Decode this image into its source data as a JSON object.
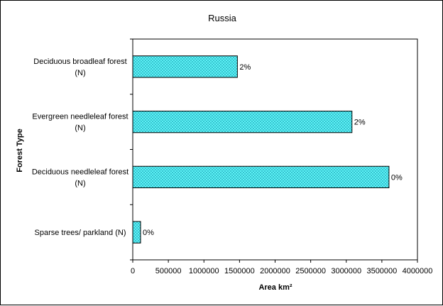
{
  "chart_data": {
    "type": "bar",
    "orientation": "horizontal",
    "title": "Russia",
    "xlabel": "Area km²",
    "ylabel": "Forest Type",
    "xlim": [
      0,
      4000000
    ],
    "xticks": [
      0,
      500000,
      1000000,
      1500000,
      2000000,
      2500000,
      3000000,
      3500000,
      4000000
    ],
    "grid": false,
    "legend": "none",
    "bar_color": "#66ffff",
    "bar_pattern": "crosshatch",
    "categories": [
      [
        "Deciduous broadleaf forest",
        "(N)"
      ],
      [
        "Evergreen needleleaf forest",
        "(N)"
      ],
      [
        "Deciduous needleleaf forest",
        "(N)"
      ],
      [
        "Sparse trees/ parkland (N)"
      ]
    ],
    "values": [
      1470000,
      3080000,
      3600000,
      110000
    ],
    "data_labels": [
      "2%",
      "2%",
      "0%",
      "0%"
    ]
  }
}
